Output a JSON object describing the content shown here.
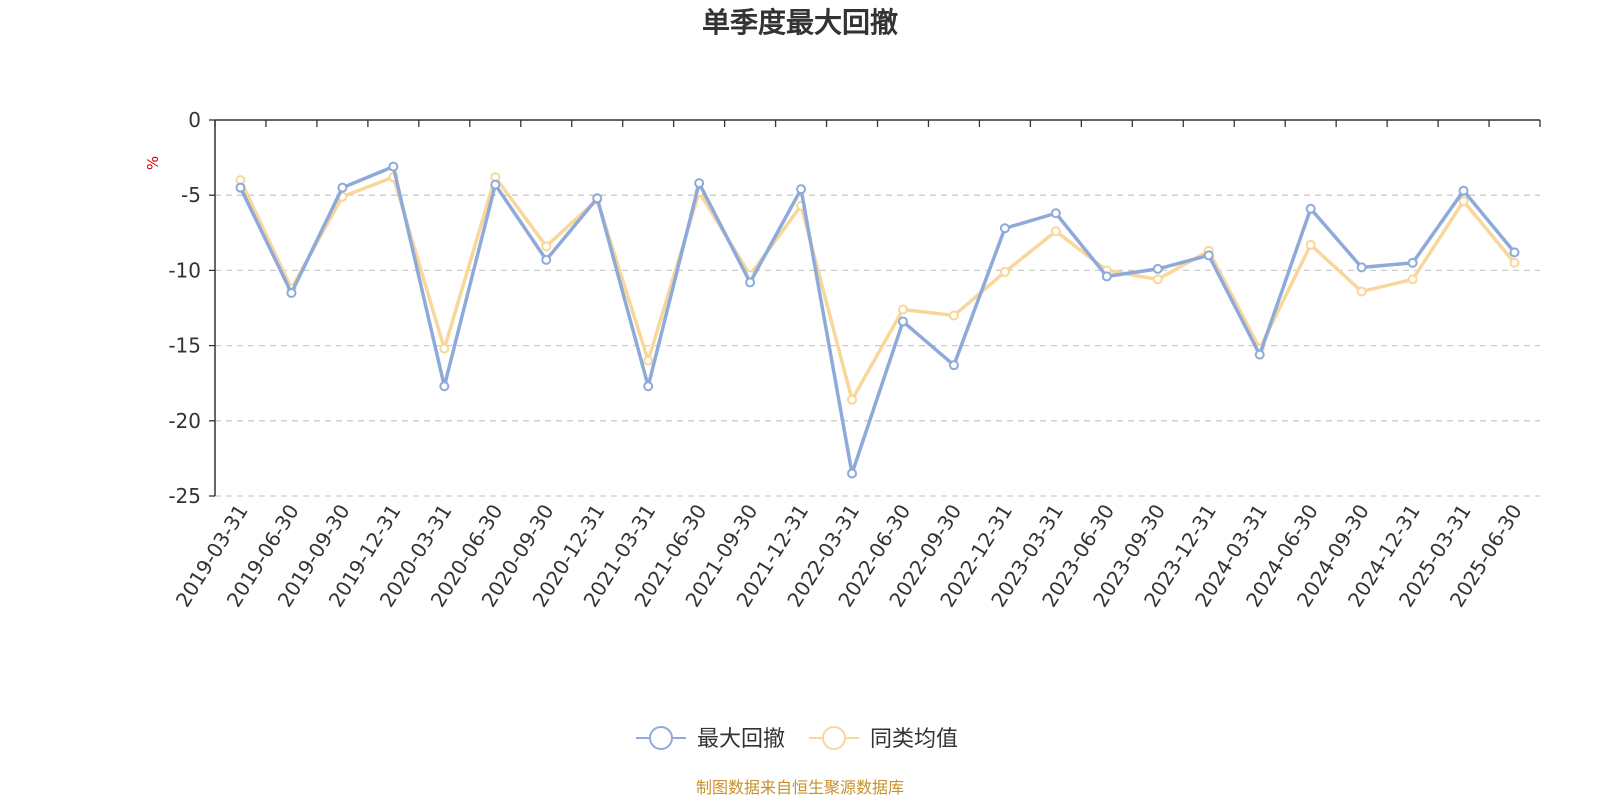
{
  "chart_data": {
    "type": "line",
    "title": "单季度最大回撤",
    "ylabel": "%",
    "ylim": [
      -25,
      0
    ],
    "yticks": [
      0,
      -5,
      -10,
      -15,
      -20,
      -25
    ],
    "grid": true,
    "legend_position": "bottom-center",
    "categories": [
      "2019-03-31",
      "2019-06-30",
      "2019-09-30",
      "2019-12-31",
      "2020-03-31",
      "2020-06-30",
      "2020-09-30",
      "2020-12-31",
      "2021-03-31",
      "2021-06-30",
      "2021-09-30",
      "2021-12-31",
      "2022-03-31",
      "2022-06-30",
      "2022-09-30",
      "2022-12-31",
      "2023-03-31",
      "2023-06-30",
      "2023-09-30",
      "2023-12-31",
      "2024-03-31",
      "2024-06-30",
      "2024-09-30",
      "2024-12-31",
      "2025-03-31",
      "2025-06-30"
    ],
    "series": [
      {
        "name": "最大回撤",
        "color": "#8eaadb",
        "values": [
          -4.5,
          -11.5,
          -4.5,
          -3.1,
          -17.7,
          -4.3,
          -9.3,
          -5.2,
          -17.7,
          -4.2,
          -10.8,
          -4.6,
          -23.5,
          -13.4,
          -16.3,
          -7.2,
          -6.2,
          -10.4,
          -9.9,
          -9.0,
          -15.6,
          -5.9,
          -9.8,
          -9.5,
          -4.7,
          -8.8
        ]
      },
      {
        "name": "同类均值",
        "color": "#f9d79b",
        "values": [
          -4.0,
          -11.2,
          -5.1,
          -3.8,
          -15.2,
          -3.8,
          -8.4,
          -5.3,
          -16.0,
          -4.8,
          -10.3,
          -5.7,
          -18.6,
          -12.6,
          -13.0,
          -10.1,
          -7.4,
          -10.0,
          -10.6,
          -8.7,
          -15.2,
          -8.3,
          -11.4,
          -10.6,
          -5.4,
          -9.5
        ]
      }
    ]
  },
  "source_text": "制图数据来自恒生聚源数据库"
}
